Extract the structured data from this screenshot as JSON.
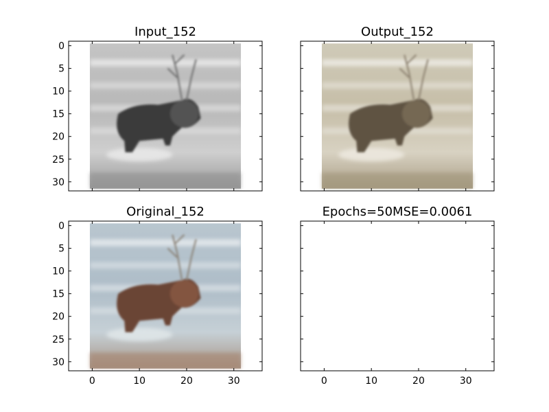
{
  "chart_data": [
    {
      "type": "image",
      "title": "Input_152",
      "image": "grayscale",
      "xlim": [
        -5,
        36
      ],
      "ylim": [
        32,
        -1
      ],
      "image_extent": [
        -0.5,
        31.5,
        31.5,
        -0.5
      ],
      "xticks": [
        0,
        10,
        20,
        30
      ],
      "yticks": [
        0,
        5,
        10,
        15,
        20,
        25,
        30
      ],
      "show_xtick_labels": false,
      "show_ytick_labels": true
    },
    {
      "type": "image",
      "title": "Output_152",
      "image": "desaturated-color",
      "xlim": [
        -5,
        36
      ],
      "ylim": [
        32,
        -1
      ],
      "image_extent": [
        -0.5,
        31.5,
        31.5,
        -0.5
      ],
      "xticks": [
        0,
        10,
        20,
        30
      ],
      "yticks": [
        0,
        5,
        10,
        15,
        20,
        25,
        30
      ],
      "show_xtick_labels": false,
      "show_ytick_labels": false
    },
    {
      "type": "image",
      "title": "Original_152",
      "image": "color",
      "xlim": [
        -5,
        36
      ],
      "ylim": [
        32,
        -1
      ],
      "image_extent": [
        -0.5,
        31.5,
        31.5,
        -0.5
      ],
      "xticks": [
        0,
        10,
        20,
        30
      ],
      "yticks": [
        0,
        5,
        10,
        15,
        20,
        25,
        30
      ],
      "show_xtick_labels": true,
      "show_ytick_labels": true
    },
    {
      "type": "empty",
      "title": "Epochs=50MSE=0.0061",
      "xlim": [
        -5,
        36
      ],
      "ylim": [
        32,
        -1
      ],
      "xticks": [
        0,
        10,
        20,
        30
      ],
      "yticks": [
        0,
        5,
        10,
        15,
        20,
        25,
        30
      ],
      "show_xtick_labels": true,
      "show_ytick_labels": false
    }
  ]
}
